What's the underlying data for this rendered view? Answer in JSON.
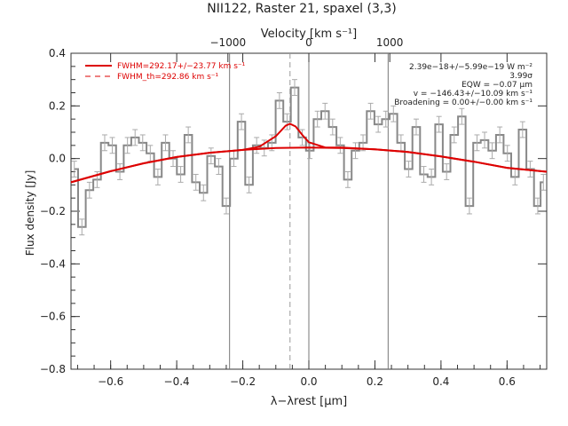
{
  "chart_data": {
    "type": "line",
    "title": "NII122, Raster 21, spaxel (3,3)",
    "xlabel": "λ−λrest [μm]",
    "ylabel": "Flux density [Jy]",
    "top_axis_label": "Velocity [km s⁻¹]",
    "xlim": [
      -0.72,
      0.72
    ],
    "ylim": [
      -0.8,
      0.4
    ],
    "x_ticks": [
      -0.6,
      -0.4,
      -0.2,
      0.0,
      0.2,
      0.4,
      0.6
    ],
    "x_tick_labels": [
      "−0.6",
      "−0.4",
      "−0.2",
      "0.0",
      "0.2",
      "0.4",
      "0.6"
    ],
    "y_ticks": [
      -0.8,
      -0.6,
      -0.4,
      -0.2,
      0.0,
      0.2,
      0.4
    ],
    "y_tick_labels": [
      "−0.8",
      "−0.6",
      "−0.4",
      "−0.2",
      "0.0",
      "0.2",
      "0.4"
    ],
    "top_ticks": [
      -1000,
      0,
      1000
    ],
    "top_tick_labels": [
      "−1000",
      "0",
      "1000"
    ],
    "vertical_lines": [
      -0.24,
      0.0,
      0.24
    ],
    "dashed_line_x": -0.057,
    "legend": [
      {
        "label": "FWHM=292.17+/−23.77 km s⁻¹",
        "style": "solid",
        "color": "#dd0000"
      },
      {
        "label": "FWHM_th=292.86 km s⁻¹",
        "style": "dashed",
        "color": "#dd0000"
      }
    ],
    "annotations": [
      "2.39e−18+/−5.99e−19 W m⁻²",
      "3.99σ",
      "EQW = −0.07 μm",
      "v = −146.43+/−10.09 km s⁻¹",
      "Broadening = 0.00+/−0.00 km s⁻¹"
    ],
    "series": [
      {
        "name": "spectrum",
        "style": "step",
        "color": "#888888",
        "x": [
          -0.71,
          -0.687,
          -0.664,
          -0.641,
          -0.618,
          -0.595,
          -0.572,
          -0.549,
          -0.526,
          -0.503,
          -0.48,
          -0.457,
          -0.434,
          -0.411,
          -0.388,
          -0.365,
          -0.342,
          -0.319,
          -0.296,
          -0.273,
          -0.25,
          -0.227,
          -0.204,
          -0.181,
          -0.158,
          -0.135,
          -0.112,
          -0.089,
          -0.066,
          -0.043,
          -0.02,
          0.003,
          0.026,
          0.049,
          0.072,
          0.095,
          0.118,
          0.141,
          0.164,
          0.187,
          0.21,
          0.233,
          0.256,
          0.279,
          0.302,
          0.325,
          0.348,
          0.371,
          0.394,
          0.417,
          0.44,
          0.463,
          0.486,
          0.509,
          0.532,
          0.555,
          0.578,
          0.601,
          0.624,
          0.647,
          0.67,
          0.693,
          0.71
        ],
        "y": [
          -0.04,
          -0.26,
          -0.12,
          -0.08,
          0.06,
          0.05,
          -0.05,
          0.05,
          0.08,
          0.06,
          0.02,
          -0.07,
          0.06,
          0.0,
          -0.06,
          0.09,
          -0.09,
          -0.13,
          0.01,
          -0.03,
          -0.18,
          0.0,
          0.14,
          -0.1,
          0.05,
          0.04,
          0.06,
          0.22,
          0.14,
          0.27,
          0.08,
          0.03,
          0.15,
          0.18,
          0.12,
          0.05,
          -0.08,
          0.03,
          0.06,
          0.18,
          0.13,
          0.15,
          0.17,
          0.06,
          -0.04,
          0.12,
          -0.06,
          -0.07,
          0.13,
          -0.05,
          0.09,
          0.16,
          -0.18,
          0.06,
          0.07,
          0.03,
          0.09,
          0.02,
          -0.07,
          0.11,
          -0.04,
          -0.18,
          -0.09
        ],
        "errors": 0.03
      },
      {
        "name": "fit",
        "style": "line",
        "color": "#dd0000",
        "x": [
          -0.72,
          -0.6,
          -0.5,
          -0.4,
          -0.3,
          -0.2,
          -0.15,
          -0.1,
          -0.07,
          -0.057,
          -0.04,
          -0.02,
          0.0,
          0.05,
          0.1,
          0.2,
          0.3,
          0.4,
          0.5,
          0.6,
          0.72
        ],
        "y": [
          -0.09,
          -0.048,
          -0.018,
          0.006,
          0.022,
          0.033,
          0.045,
          0.085,
          0.125,
          0.132,
          0.122,
          0.09,
          0.062,
          0.042,
          0.042,
          0.035,
          0.025,
          0.008,
          -0.012,
          -0.035,
          -0.05
        ]
      },
      {
        "name": "baseline",
        "style": "line",
        "color": "#dd0000",
        "x": [
          -0.72,
          -0.6,
          -0.5,
          -0.4,
          -0.3,
          -0.2,
          -0.1,
          0.0,
          0.1,
          0.2,
          0.3,
          0.4,
          0.5,
          0.6,
          0.72
        ],
        "y": [
          -0.09,
          -0.048,
          -0.018,
          0.006,
          0.022,
          0.033,
          0.04,
          0.042,
          0.04,
          0.035,
          0.025,
          0.008,
          -0.012,
          -0.035,
          -0.05
        ]
      }
    ]
  }
}
